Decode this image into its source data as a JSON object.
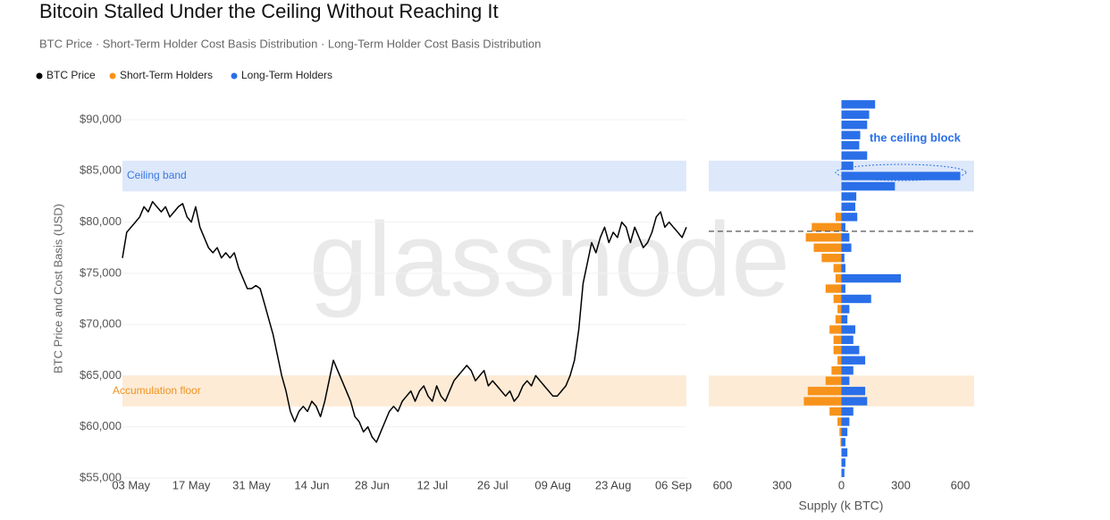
{
  "chart_data": [
    {
      "type": "line",
      "title": "Bitcoin Stalled Under the Ceiling Without Reaching It",
      "subtitle": "BTC Price · Short-Term Holder Cost Basis Distribution · Long-Term Holder Cost Basis Distribution",
      "y_label": "BTC Price and Cost Basis (USD)",
      "watermark": "glassnode",
      "grid": true,
      "x": [
        "01 May",
        "02 May",
        "03 May",
        "04 May",
        "05 May",
        "06 May",
        "07 May",
        "08 May",
        "09 May",
        "10 May",
        "11 May",
        "12 May",
        "13 May",
        "14 May",
        "15 May",
        "16 May",
        "17 May",
        "18 May",
        "19 May",
        "20 May",
        "21 May",
        "22 May",
        "23 May",
        "24 May",
        "25 May",
        "26 May",
        "27 May",
        "28 May",
        "29 May",
        "30 May",
        "31 May",
        "01 Jun",
        "02 Jun",
        "03 Jun",
        "04 Jun",
        "05 Jun",
        "06 Jun",
        "07 Jun",
        "08 Jun",
        "09 Jun",
        "10 Jun",
        "11 Jun",
        "12 Jun",
        "13 Jun",
        "14 Jun",
        "15 Jun",
        "16 Jun",
        "17 Jun",
        "18 Jun",
        "19 Jun",
        "20 Jun",
        "21 Jun",
        "22 Jun",
        "23 Jun",
        "24 Jun",
        "25 Jun",
        "26 Jun",
        "27 Jun",
        "28 Jun",
        "29 Jun",
        "30 Jun",
        "01 Jul",
        "02 Jul",
        "03 Jul",
        "04 Jul",
        "05 Jul",
        "06 Jul",
        "07 Jul",
        "08 Jul",
        "09 Jul",
        "10 Jul",
        "11 Jul",
        "12 Jul",
        "13 Jul",
        "14 Jul",
        "15 Jul",
        "16 Jul",
        "17 Jul",
        "18 Jul",
        "19 Jul",
        "20 Jul",
        "21 Jul",
        "22 Jul",
        "23 Jul",
        "24 Jul",
        "25 Jul",
        "26 Jul",
        "27 Jul",
        "28 Jul",
        "29 Jul",
        "30 Jul",
        "31 Jul",
        "01 Aug",
        "02 Aug",
        "03 Aug",
        "04 Aug",
        "05 Aug",
        "06 Aug",
        "07 Aug",
        "08 Aug",
        "09 Aug",
        "10 Aug",
        "11 Aug",
        "12 Aug",
        "13 Aug",
        "14 Aug",
        "15 Aug",
        "16 Aug",
        "17 Aug",
        "18 Aug",
        "19 Aug",
        "20 Aug",
        "21 Aug",
        "22 Aug",
        "23 Aug",
        "24 Aug",
        "25 Aug",
        "26 Aug",
        "27 Aug",
        "28 Aug",
        "29 Aug",
        "30 Aug",
        "31 Aug",
        "01 Sep",
        "02 Sep",
        "03 Sep",
        "04 Sep",
        "05 Sep",
        "06 Sep",
        "07 Sep",
        "08 Sep",
        "09 Sep"
      ],
      "xticks": [
        "03 May",
        "17 May",
        "31 May",
        "14 Jun",
        "28 Jun",
        "12 Jul",
        "26 Jul",
        "09 Aug",
        "23 Aug",
        "06 Sep"
      ],
      "ylim": [
        55000,
        90000
      ],
      "yticks": [
        {
          "value": 55000,
          "label": "$55,000"
        },
        {
          "value": 60000,
          "label": "$60,000"
        },
        {
          "value": 65000,
          "label": "$65,000"
        },
        {
          "value": 70000,
          "label": "$70,000"
        },
        {
          "value": 75000,
          "label": "$75,000"
        },
        {
          "value": 80000,
          "label": "$80,000"
        },
        {
          "value": 85000,
          "label": "$85,000"
        },
        {
          "value": 90000,
          "label": "$90,000"
        }
      ],
      "bands": [
        {
          "label": "Ceiling band",
          "range": [
            83000,
            86000
          ],
          "color": "#dde8fb",
          "text_color": "#3a78e0"
        },
        {
          "label": "Accumulation floor",
          "range": [
            62000,
            65000
          ],
          "color": "#fdebd6",
          "text_color": "#f0921e"
        }
      ],
      "series": [
        {
          "name": "BTC Price",
          "color": "#000000",
          "values": [
            76500,
            79000,
            79500,
            80000,
            80500,
            81500,
            81000,
            82000,
            81500,
            81000,
            81500,
            80500,
            81000,
            81500,
            81800,
            80500,
            80000,
            81500,
            79500,
            78500,
            77500,
            77000,
            77500,
            76500,
            77000,
            76500,
            77000,
            75500,
            74500,
            73500,
            73500,
            73800,
            73500,
            72000,
            70500,
            69000,
            67000,
            65000,
            63500,
            61500,
            60500,
            61500,
            62000,
            61500,
            62500,
            62000,
            61000,
            62500,
            64500,
            66500,
            65500,
            64500,
            63500,
            62500,
            61000,
            60500,
            59500,
            60000,
            59000,
            58500,
            59500,
            60500,
            61500,
            62000,
            61500,
            62500,
            63000,
            63500,
            62500,
            63500,
            64000,
            63000,
            62500,
            64000,
            63000,
            62500,
            63500,
            64500,
            65000,
            65500,
            66000,
            65500,
            64500,
            65000,
            65500,
            64000,
            64500,
            64000,
            63500,
            63000,
            63500,
            62500,
            63000,
            64000,
            64500,
            64000,
            65000,
            64500,
            64000,
            63500,
            63000,
            63000,
            63500,
            64000,
            65000,
            66500,
            69500,
            74000,
            76000,
            78000,
            77000,
            78500,
            79500,
            78000,
            79000,
            78500,
            80000,
            79500,
            78000,
            79500,
            78500,
            77500,
            78000,
            79000,
            80500,
            81000,
            79500,
            80000,
            79500,
            79000,
            78500,
            79500
          ]
        }
      ]
    },
    {
      "type": "barh",
      "x_label": "Supply (k BTC)",
      "xlim": [
        -670,
        670
      ],
      "xticks": [
        {
          "value": -600,
          "label": "600"
        },
        {
          "value": -300,
          "label": "300"
        },
        0,
        300,
        600
      ],
      "ylim": [
        55000,
        90000
      ],
      "current_price": 79100,
      "annotation": "the ceiling block",
      "price_levels": [
        91500,
        90500,
        89500,
        88500,
        87500,
        86500,
        85500,
        84500,
        83500,
        82500,
        81500,
        80500,
        79500,
        78500,
        77500,
        76500,
        75500,
        74500,
        73500,
        72500,
        71500,
        70500,
        69500,
        68500,
        67500,
        66500,
        65500,
        64500,
        63500,
        62500,
        61500,
        60500,
        59500,
        58500,
        57500,
        56500,
        55500
      ],
      "series": [
        {
          "name": "Short-Term Holders",
          "color": "#f7931a",
          "values": [
            0,
            0,
            0,
            0,
            0,
            0,
            0,
            0,
            0,
            0,
            0,
            -30,
            -150,
            -180,
            -140,
            -100,
            -40,
            -30,
            -80,
            -40,
            -20,
            -30,
            -60,
            -40,
            -40,
            -20,
            -50,
            -80,
            -170,
            -190,
            -60,
            -20,
            -10,
            -5,
            0,
            0,
            0
          ]
        },
        {
          "name": "Long-Term Holders",
          "color": "#2a6fe8",
          "values": [
            170,
            140,
            130,
            95,
            90,
            130,
            60,
            600,
            270,
            75,
            70,
            80,
            20,
            40,
            50,
            15,
            20,
            300,
            20,
            150,
            40,
            30,
            70,
            60,
            90,
            120,
            60,
            40,
            120,
            130,
            60,
            40,
            30,
            20,
            30,
            20,
            15
          ]
        }
      ]
    }
  ]
}
